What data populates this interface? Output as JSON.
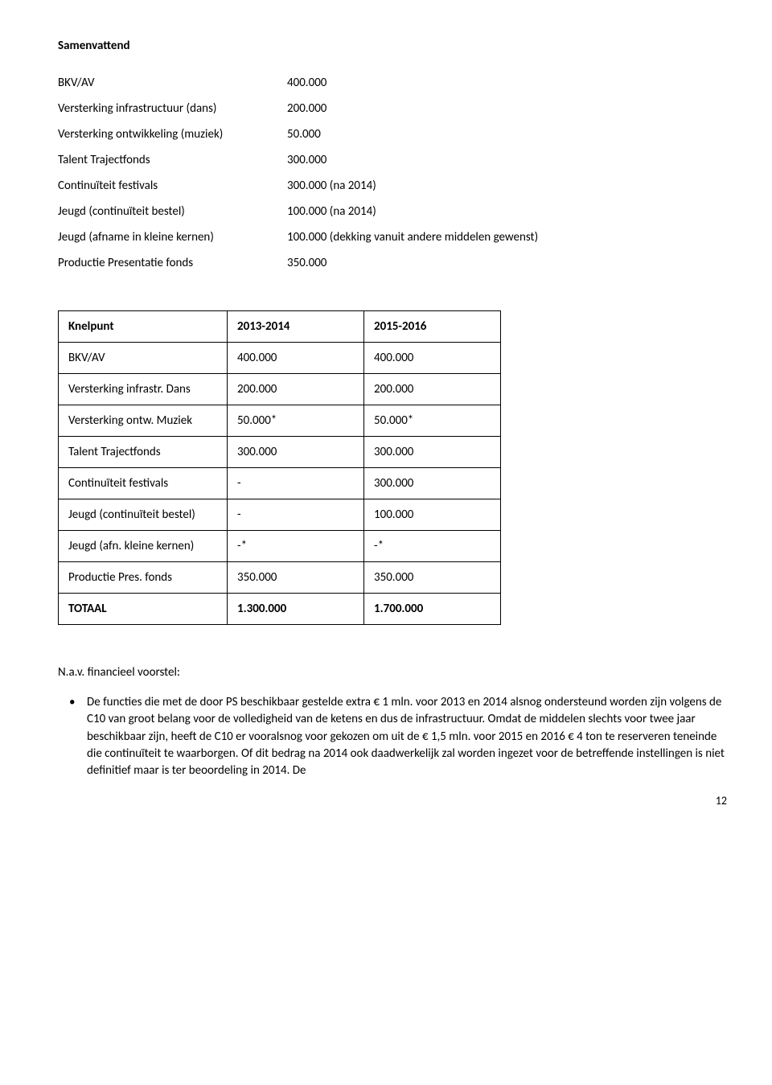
{
  "heading": "Samenvattend",
  "summary_rows": [
    {
      "label": "BKV/AV",
      "value": "400.000"
    },
    {
      "label": "Versterking infrastructuur (dans)",
      "value": "200.000"
    },
    {
      "label": "Versterking ontwikkeling (muziek)",
      "value": "50.000"
    },
    {
      "label": "Talent Trajectfonds",
      "value": "300.000"
    },
    {
      "label": "Continuïteit festivals",
      "value": "300.000 (na 2014)"
    },
    {
      "label": "Jeugd (continuïteit bestel)",
      "value": "100.000 (na 2014)"
    },
    {
      "label": "Jeugd (afname in kleine kernen)",
      "value": "100.000 (dekking vanuit andere middelen gewenst)"
    },
    {
      "label": "Productie Presentatie fonds",
      "value": "350.000"
    }
  ],
  "table": {
    "headers": [
      "Knelpunt",
      "2013-2014",
      "2015-2016"
    ],
    "rows": [
      [
        "BKV/AV",
        "400.000",
        "400.000"
      ],
      [
        "Versterking infrastr. Dans",
        "200.000",
        "200.000"
      ],
      [
        "Versterking ontw. Muziek",
        "50.000*",
        "50.000*"
      ],
      [
        "Talent Trajectfonds",
        "300.000",
        "300.000"
      ],
      [
        "Continuïteit festivals",
        "-",
        "300.000"
      ],
      [
        "Jeugd (continuïteit bestel)",
        "-",
        "100.000"
      ],
      [
        "Jeugd (afn. kleine kernen)",
        "-*",
        "-*"
      ],
      [
        "Productie Pres. fonds",
        "350.000",
        "350.000"
      ]
    ],
    "total_row": [
      "TOTAAL",
      "1.300.000",
      "1.700.000"
    ]
  },
  "footnote_label": "N.a.v. financieel voorstel:",
  "bullets": [
    "De functies die met de door PS beschikbaar gestelde extra € 1 mln. voor 2013 en 2014 alsnog ondersteund worden zijn volgens de C10 van groot belang voor de volledigheid van de ketens en dus de infrastructuur. Omdat de middelen slechts voor twee jaar beschikbaar zijn, heeft de C10 er vooralsnog voor gekozen om uit de € 1,5 mln. voor 2015 en 2016 € 4 ton te reserveren teneinde die continuïteit te waarborgen. Of dit bedrag na 2014 ook daadwerkelijk zal worden ingezet voor de betreffende instellingen is niet definitief maar is ter beoordeling in 2014. De"
  ],
  "page_number": "12"
}
